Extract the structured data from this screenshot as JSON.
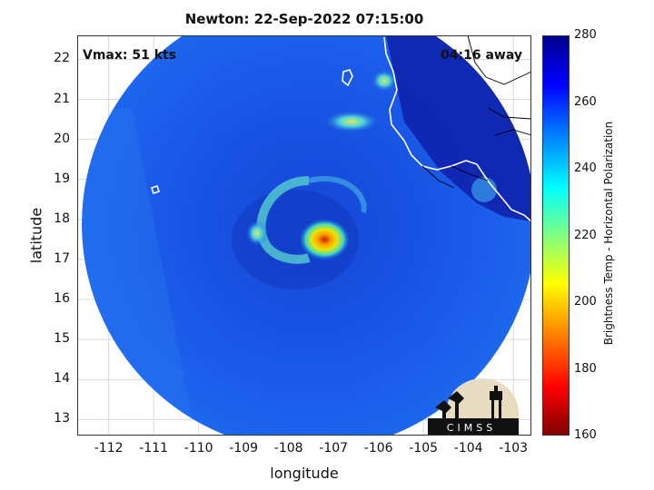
{
  "chart_data": {
    "type": "heatmap",
    "title": "Newton: 22-Sep-2022 07:15:00",
    "annotations": {
      "vmax": "Vmax: 51 kts",
      "time_away": "04:16 away"
    },
    "xlabel": "longitude",
    "ylabel": "latitude",
    "xlim": [
      -112.7,
      -102.6
    ],
    "ylim": [
      12.6,
      22.6
    ],
    "xticks": [
      -112,
      -111,
      -110,
      -109,
      -108,
      -107,
      -106,
      -105,
      -104,
      -103
    ],
    "yticks": [
      13,
      14,
      15,
      16,
      17,
      18,
      19,
      20,
      21,
      22
    ],
    "storm_center": {
      "lon": -107.2,
      "lat": 17.5,
      "min_tb": 185
    },
    "colorbar": {
      "label": "Brightness Temp - Horizontal Polarization",
      "range": [
        160,
        280
      ],
      "ticks": [
        160,
        180,
        200,
        220,
        240,
        260,
        280
      ],
      "colormap": "jet"
    },
    "grid": true
  },
  "logo_text": "CIMSS"
}
